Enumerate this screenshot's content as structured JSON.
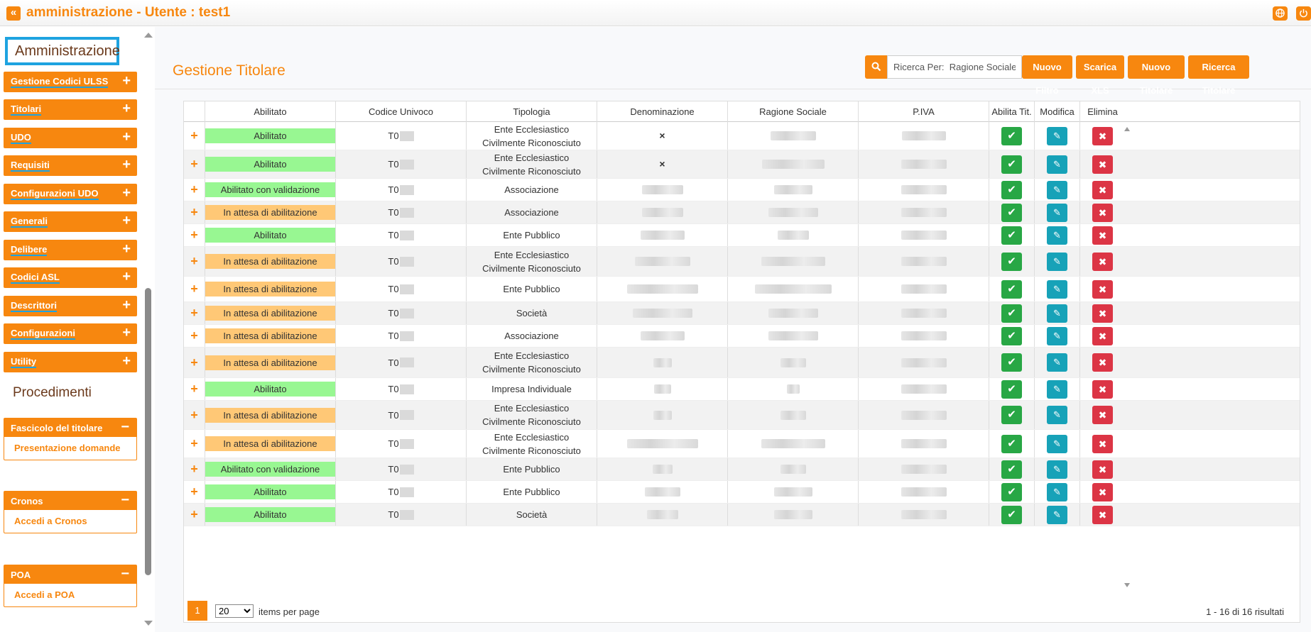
{
  "header": {
    "back_label": "«",
    "title": "amministrazione - Utente : test1",
    "globe_icon": "globe-icon",
    "power_icon": "power-icon"
  },
  "sidebar": {
    "section_title": "Amministrazione",
    "items": [
      {
        "label": "Gestione Codici ULSS"
      },
      {
        "label": "Titolari"
      },
      {
        "label": "UDO"
      },
      {
        "label": "Requisiti"
      },
      {
        "label": "Configurazioni UDO"
      },
      {
        "label": "Generali"
      },
      {
        "label": "Delibere"
      },
      {
        "label": "Codici ASL"
      },
      {
        "label": "Descrittori"
      },
      {
        "label": "Configurazioni"
      },
      {
        "label": "Utility"
      }
    ],
    "plus": "+",
    "minus": "−",
    "proc_title": "Procedimenti",
    "panels": [
      {
        "title": "Fascicolo del titolare",
        "link": "Presentazione domande"
      },
      {
        "title": "Cronos",
        "link": "Accedi a Cronos"
      },
      {
        "title": "POA",
        "link": "Accedi a POA"
      }
    ]
  },
  "main": {
    "page_title": "Gestione Titolare",
    "search_value": "Ricerca Per:  Ragione Sociale",
    "buttons": {
      "nuovo_filtro": "Nuovo Filtro",
      "scarica_xls": "Scarica XLS",
      "nuovo_titolare": "Nuovo Titolare",
      "ricerca_titolare": "Ricerca Titolare"
    }
  },
  "table": {
    "columns": [
      "Abilitato",
      "Codice Univoco",
      "Tipologia",
      "Denominazione",
      "Ragione Sociale",
      "P.IVA",
      "Abilita Tit.",
      "Modifica",
      "Elimina"
    ],
    "rows": [
      {
        "status": "Abilitato",
        "code": "T0",
        "tipologia": "Ente Ecclesiastico Civilmente Riconosciuto",
        "denominazione": "×"
      },
      {
        "status": "Abilitato",
        "code": "T0",
        "tipologia": "Ente Ecclesiastico Civilmente Riconosciuto",
        "denominazione": "×"
      },
      {
        "status": "Abilitato con validazione",
        "code": "T0",
        "tipologia": "Associazione",
        "denominazione": ""
      },
      {
        "status": "In attesa di abilitazione",
        "code": "T0",
        "tipologia": "Associazione",
        "denominazione": ""
      },
      {
        "status": "Abilitato",
        "code": "T0",
        "tipologia": "Ente Pubblico",
        "denominazione": ""
      },
      {
        "status": "In attesa di abilitazione",
        "code": "T0",
        "tipologia": "Ente Ecclesiastico Civilmente Riconosciuto",
        "denominazione": ""
      },
      {
        "status": "In attesa di abilitazione",
        "code": "T0",
        "tipologia": "Ente Pubblico",
        "denominazione": ""
      },
      {
        "status": "In attesa di abilitazione",
        "code": "T0",
        "tipologia": "Società",
        "denominazione": ""
      },
      {
        "status": "In attesa di abilitazione",
        "code": "T0",
        "tipologia": "Associazione",
        "denominazione": ""
      },
      {
        "status": "In attesa di abilitazione",
        "code": "T0",
        "tipologia": "Ente Ecclesiastico Civilmente Riconosciuto",
        "denominazione": ""
      },
      {
        "status": "Abilitato",
        "code": "T0",
        "tipologia": "Impresa Individuale",
        "denominazione": ""
      },
      {
        "status": "In attesa di abilitazione",
        "code": "T0",
        "tipologia": "Ente Ecclesiastico Civilmente Riconosciuto",
        "denominazione": ""
      },
      {
        "status": "In attesa di abilitazione",
        "code": "T0",
        "tipologia": "Ente Ecclesiastico Civilmente Riconosciuto",
        "denominazione": ""
      },
      {
        "status": "Abilitato con validazione",
        "code": "T0",
        "tipologia": "Ente Pubblico",
        "denominazione": ""
      },
      {
        "status": "Abilitato",
        "code": "T0",
        "tipologia": "Ente Pubblico",
        "denominazione": ""
      },
      {
        "status": "Abilitato",
        "code": "T0",
        "tipologia": "Società",
        "denominazione": ""
      }
    ],
    "status_colors": {
      "Abilitato": "#98f792",
      "Abilitato con validazione": "#98f792",
      "In attesa di abilitazione": "#ffc876"
    },
    "expand_symbol": "+",
    "action_icons": {
      "ok": "✔",
      "edit": "✎",
      "del": "✖"
    }
  },
  "pagination": {
    "current_page": "1",
    "page_size": "20",
    "items_per_page": "items per page",
    "results": "1 - 16 di 16 risultati"
  },
  "colors": {
    "accent": "#f7870f",
    "highlight": "#1ea3e0"
  }
}
